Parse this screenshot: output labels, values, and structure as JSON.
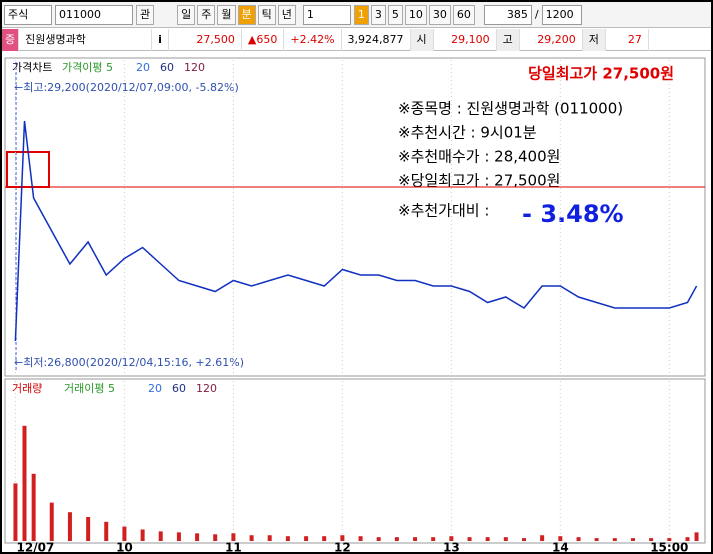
{
  "toolbar": {
    "market": "주식",
    "code": "011000",
    "watch": "관",
    "periods": [
      "일",
      "주",
      "월",
      "분",
      "틱",
      "년"
    ],
    "period_count": "1",
    "minute_options": [
      "1",
      "3",
      "5",
      "10",
      "30",
      "60"
    ],
    "count": "385",
    "separator": "/",
    "total": "1200"
  },
  "quote": {
    "badge": "증",
    "name": "진원생명과학",
    "info": "i",
    "price": "27,500",
    "change": "▲650",
    "rate": "+2.42%",
    "volume": "3,924,877",
    "open_label": "시",
    "open": "29,100",
    "high_label": "고",
    "high": "29,200",
    "low_label": "저",
    "low": "27"
  },
  "price_panel": {
    "title": "가격차트",
    "ma_label": "가격이평 5",
    "ma": [
      "20",
      "60",
      "120"
    ],
    "headline": "당일최고가 27,500원",
    "high_note": "←최고:29,200(2020/12/07,09:00, -5.82%)",
    "low_note": "←최저:26,800(2020/12/04,15:16, +2.61%)",
    "info": [
      "※종목명 : 진원생명과학 (011000)",
      "※추천시간 : 9시01분",
      "※추천매수가 : 28,400원",
      "※당일최고가 : 27,500원",
      "※추천가대비 :"
    ],
    "diff": "- 3.48%"
  },
  "volume_panel": {
    "title": "거래량",
    "ma_label": "거래이평 5",
    "ma": [
      "20",
      "60",
      "120"
    ]
  },
  "chart": {
    "type": "line",
    "color": "#1030c0",
    "volume_color": "#d02020",
    "ref_price": 28400,
    "x": [
      9.0,
      9.083,
      9.167,
      9.333,
      9.5,
      9.667,
      9.833,
      10.0,
      10.167,
      10.333,
      10.5,
      10.667,
      10.833,
      11.0,
      11.167,
      11.333,
      11.5,
      11.667,
      11.833,
      12.0,
      12.167,
      12.333,
      12.5,
      12.667,
      12.833,
      13.0,
      13.167,
      13.333,
      13.5,
      13.667,
      13.833,
      14.0,
      14.167,
      14.333,
      14.5,
      14.667,
      14.833,
      15.0,
      15.167,
      15.25
    ],
    "close": [
      27000,
      29000,
      28300,
      28000,
      27700,
      27900,
      27600,
      27750,
      27850,
      27700,
      27550,
      27500,
      27450,
      27550,
      27500,
      27550,
      27600,
      27550,
      27500,
      27650,
      27600,
      27600,
      27550,
      27550,
      27500,
      27500,
      27450,
      27350,
      27400,
      27300,
      27500,
      27500,
      27400,
      27350,
      27300,
      27300,
      27300,
      27300,
      27350,
      27500
    ],
    "volume": [
      60000,
      120000,
      70000,
      40000,
      30000,
      25000,
      20000,
      15000,
      12000,
      10000,
      9000,
      8000,
      7000,
      8000,
      6000,
      6000,
      5000,
      5000,
      5000,
      6000,
      5000,
      4000,
      4000,
      4000,
      4000,
      5000,
      4000,
      4000,
      4000,
      3000,
      6000,
      5000,
      4000,
      3000,
      3000,
      3000,
      3000,
      3000,
      4000,
      9000
    ],
    "xlim": [
      8.95,
      15.3
    ],
    "ylim": [
      26700,
      29400
    ],
    "vlim": [
      0,
      150000
    ],
    "xticks": [
      {
        "value": 9,
        "label": "12/07"
      },
      10,
      11,
      12,
      13,
      14,
      {
        "value": 15,
        "label": "15:00"
      }
    ]
  }
}
